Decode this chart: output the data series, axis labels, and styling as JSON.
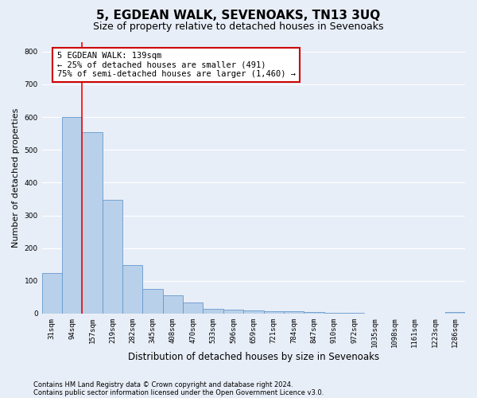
{
  "title": "5, EGDEAN WALK, SEVENOAKS, TN13 3UQ",
  "subtitle": "Size of property relative to detached houses in Sevenoaks",
  "xlabel": "Distribution of detached houses by size in Sevenoaks",
  "ylabel": "Number of detached properties",
  "categories": [
    "31sqm",
    "94sqm",
    "157sqm",
    "219sqm",
    "282sqm",
    "345sqm",
    "408sqm",
    "470sqm",
    "533sqm",
    "596sqm",
    "659sqm",
    "721sqm",
    "784sqm",
    "847sqm",
    "910sqm",
    "972sqm",
    "1035sqm",
    "1098sqm",
    "1161sqm",
    "1223sqm",
    "1286sqm"
  ],
  "values": [
    125,
    600,
    555,
    348,
    148,
    75,
    55,
    33,
    15,
    12,
    10,
    8,
    6,
    5,
    3,
    2,
    1,
    1,
    0,
    0,
    5
  ],
  "bar_color": "#b8d0ea",
  "bar_edge_color": "#6699cc",
  "ylim": [
    0,
    830
  ],
  "yticks": [
    0,
    100,
    200,
    300,
    400,
    500,
    600,
    700,
    800
  ],
  "property_line_x": 1.5,
  "annotation_text": "5 EGDEAN WALK: 139sqm\n← 25% of detached houses are smaller (491)\n75% of semi-detached houses are larger (1,460) →",
  "annotation_box_color": "#ffffff",
  "annotation_box_edge_color": "#cc0000",
  "footer_line1": "Contains HM Land Registry data © Crown copyright and database right 2024.",
  "footer_line2": "Contains public sector information licensed under the Open Government Licence v3.0.",
  "background_color": "#e8eef8",
  "grid_color": "#ffffff",
  "title_fontsize": 11,
  "subtitle_fontsize": 9,
  "tick_fontsize": 6.5,
  "xlabel_fontsize": 8.5,
  "ylabel_fontsize": 8,
  "footer_fontsize": 6,
  "annot_fontsize": 7.5
}
